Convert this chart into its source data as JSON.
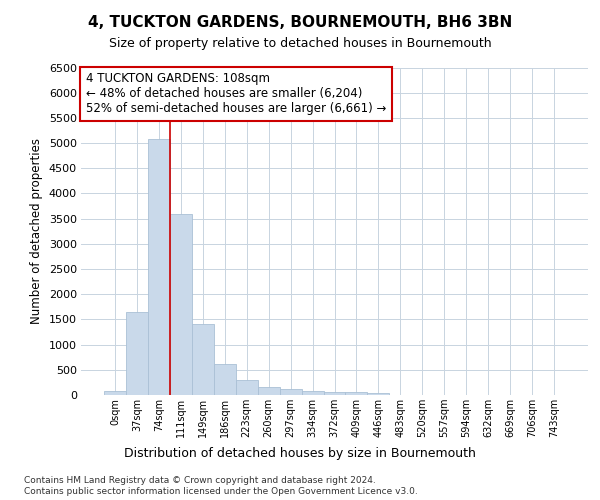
{
  "title": "4, TUCKTON GARDENS, BOURNEMOUTH, BH6 3BN",
  "subtitle": "Size of property relative to detached houses in Bournemouth",
  "xlabel": "Distribution of detached houses by size in Bournemouth",
  "ylabel": "Number of detached properties",
  "footer1": "Contains HM Land Registry data © Crown copyright and database right 2024.",
  "footer2": "Contains public sector information licensed under the Open Government Licence v3.0.",
  "bar_labels": [
    "0sqm",
    "37sqm",
    "74sqm",
    "111sqm",
    "149sqm",
    "186sqm",
    "223sqm",
    "260sqm",
    "297sqm",
    "334sqm",
    "372sqm",
    "409sqm",
    "446sqm",
    "483sqm",
    "520sqm",
    "557sqm",
    "594sqm",
    "632sqm",
    "669sqm",
    "706sqm",
    "743sqm"
  ],
  "bar_values": [
    75,
    1650,
    5075,
    3600,
    1400,
    625,
    295,
    150,
    110,
    75,
    55,
    50,
    45,
    0,
    0,
    0,
    0,
    0,
    0,
    0,
    0
  ],
  "bar_color": "#c9d9ea",
  "bar_edgecolor": "#aac0d5",
  "grid_color": "#c8d4e0",
  "vline_x": 2.5,
  "vline_color": "#cc0000",
  "annotation_text": "4 TUCKTON GARDENS: 108sqm\n← 48% of detached houses are smaller (6,204)\n52% of semi-detached houses are larger (6,661) →",
  "annotation_box_color": "#cc0000",
  "ylim": [
    0,
    6500
  ],
  "yticks": [
    0,
    500,
    1000,
    1500,
    2000,
    2500,
    3000,
    3500,
    4000,
    4500,
    5000,
    5500,
    6000,
    6500
  ],
  "bg_color": "#ffffff",
  "plot_bg_color": "#ffffff"
}
